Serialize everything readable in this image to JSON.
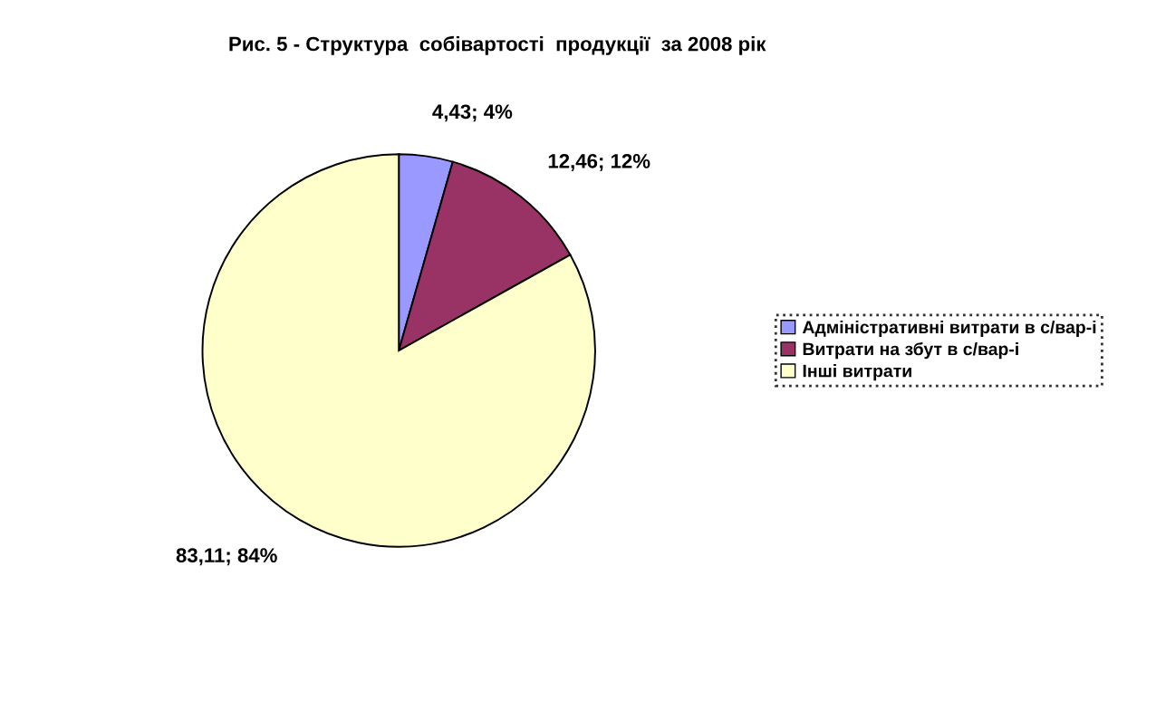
{
  "chart_data": {
    "type": "pie",
    "title": "Рис. 5 - Структура  собівартості  продукції  за 2008 рік",
    "categories": [
      "Адміністративні витрати в с/вар-і",
      "Витрати на збут в с/вар-і",
      "Інші витрати"
    ],
    "values": [
      4.43,
      12.46,
      83.11
    ],
    "value_labels": [
      "4,43; 4%",
      "12,46; 12%",
      "83,11; 84%"
    ],
    "colors": [
      "#9999ff",
      "#993366",
      "#ffffcc"
    ],
    "legend": "right"
  }
}
